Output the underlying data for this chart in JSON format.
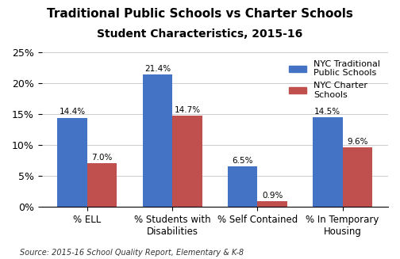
{
  "title_line1": "Traditional Public Schools vs Charter Schools",
  "title_line2": "Student Characteristics, 2015-16",
  "categories": [
    "% ELL",
    "% Students with\nDisabilities",
    "% Self Contained",
    "% In Temporary\nHousing"
  ],
  "traditional": [
    14.4,
    21.4,
    6.5,
    14.5
  ],
  "charter": [
    7.0,
    14.7,
    0.9,
    9.6
  ],
  "traditional_color": "#4472C4",
  "charter_color": "#C0504D",
  "legend_traditional": "NYC Traditional\nPublic Schools",
  "legend_charter": "NYC Charter\nSchools",
  "ylim": [
    0,
    25
  ],
  "yticks": [
    0,
    5,
    10,
    15,
    20,
    25
  ],
  "yticklabels": [
    "0%",
    "5%",
    "10%",
    "15%",
    "20%",
    "25%"
  ],
  "source": "Source: 2015-16 School Quality Report, Elementary & K-8",
  "background_color": "#ffffff",
  "bar_width": 0.35
}
